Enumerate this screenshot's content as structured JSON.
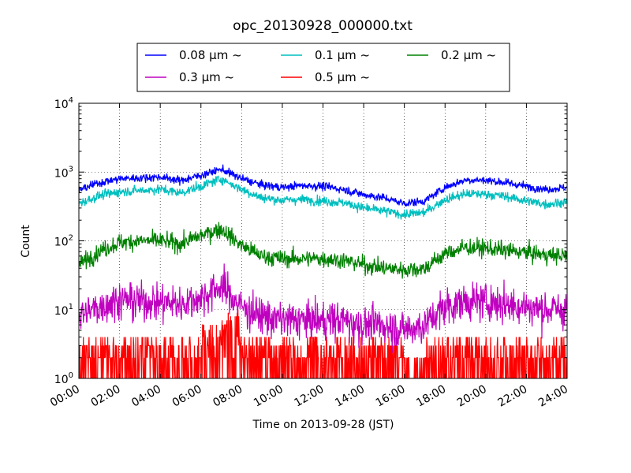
{
  "chart_data": {
    "type": "line",
    "title": "opc_20130928_000000.txt",
    "xlabel": "Time on 2013-09-28 (JST)",
    "ylabel": "Count",
    "x_unit": "hour",
    "xlim": [
      0,
      24
    ],
    "ylim": [
      1,
      10000
    ],
    "yscale": "log",
    "grid": true,
    "grid_style": "dotted",
    "legend_placement": "top-center (above plot)",
    "x_ticks": [
      "00:00",
      "02:00",
      "04:00",
      "06:00",
      "08:00",
      "10:00",
      "12:00",
      "14:00",
      "16:00",
      "18:00",
      "20:00",
      "22:00",
      "24:00"
    ],
    "y_ticks": [
      {
        "base": "10",
        "exp": "0",
        "value": 1
      },
      {
        "base": "10",
        "exp": "1",
        "value": 10
      },
      {
        "base": "10",
        "exp": "2",
        "value": 100
      },
      {
        "base": "10",
        "exp": "3",
        "value": 1000
      },
      {
        "base": "10",
        "exp": "4",
        "value": 10000
      }
    ],
    "x": [
      0,
      1,
      2,
      3,
      4,
      5,
      6,
      7,
      8,
      9,
      10,
      11,
      12,
      13,
      14,
      15,
      16,
      17,
      18,
      19,
      20,
      21,
      22,
      23,
      24
    ],
    "series": [
      {
        "name": "0.08 μm ~",
        "color": "#0000ff",
        "noise": 0.12,
        "values": [
          550,
          700,
          800,
          820,
          850,
          750,
          900,
          1100,
          800,
          650,
          600,
          640,
          620,
          560,
          470,
          420,
          350,
          380,
          600,
          770,
          760,
          700,
          620,
          560,
          600
        ]
      },
      {
        "name": "0.1 μm ~",
        "color": "#00bfbf",
        "noise": 0.14,
        "values": [
          350,
          450,
          520,
          540,
          560,
          500,
          620,
          800,
          560,
          420,
          390,
          400,
          380,
          360,
          300,
          270,
          240,
          260,
          400,
          480,
          480,
          440,
          380,
          340,
          370
        ]
      },
      {
        "name": "0.2 μm ~",
        "color": "#008000",
        "noise": 0.25,
        "values": [
          45,
          70,
          95,
          100,
          100,
          90,
          120,
          150,
          85,
          60,
          55,
          55,
          55,
          52,
          45,
          40,
          38,
          40,
          65,
          80,
          78,
          72,
          68,
          62,
          60
        ]
      },
      {
        "name": "0.3 μm ~",
        "color": "#bf00bf",
        "noise": 0.55,
        "values": [
          8,
          11,
          14,
          13,
          13,
          12,
          15,
          22,
          11,
          8,
          7,
          7,
          7,
          7,
          6,
          6,
          5,
          6,
          11,
          13,
          13,
          12,
          11,
          10,
          10
        ]
      },
      {
        "name": "0.5 μm ~",
        "color": "#ff0000",
        "noise": 1.0,
        "values": [
          2,
          2,
          2,
          2,
          2,
          2,
          3,
          5,
          2,
          2,
          2,
          2,
          2,
          2,
          2,
          2,
          1,
          2,
          2,
          2,
          2,
          2,
          2,
          2,
          2
        ]
      }
    ]
  }
}
